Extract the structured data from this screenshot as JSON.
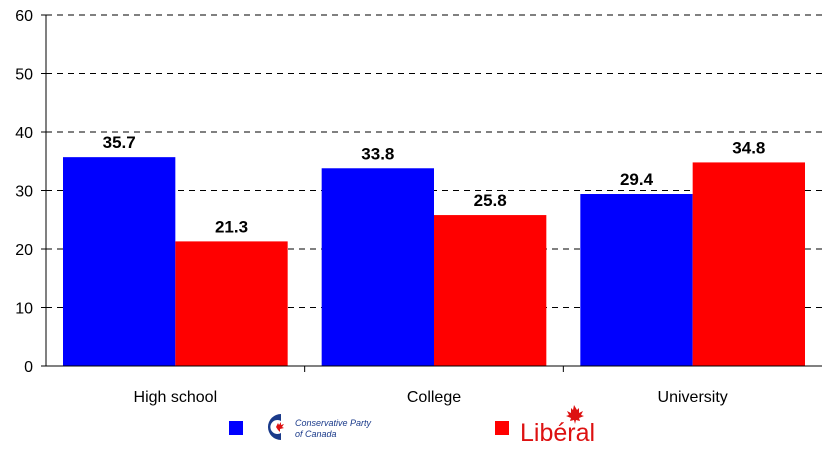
{
  "chart_data": {
    "type": "bar",
    "categories": [
      "High school",
      "College",
      "University"
    ],
    "series": [
      {
        "name": "Conservative Party of Canada",
        "color": "#0000FF",
        "values": [
          35.7,
          33.8,
          29.4
        ]
      },
      {
        "name": "Liberal",
        "color": "#FF0000",
        "values": [
          21.3,
          25.8,
          34.8
        ]
      }
    ],
    "ylim": [
      0,
      60
    ],
    "yticks": [
      0,
      10,
      20,
      30,
      40,
      50,
      60
    ],
    "grid": "dashed horizontal",
    "legend_position": "bottom",
    "title": "",
    "xlabel": "",
    "ylabel": ""
  },
  "legend": {
    "conservative_logo_line1": "Conservative Party",
    "conservative_logo_line2": "of Canada",
    "liberal_logo_text": "Libéral"
  }
}
